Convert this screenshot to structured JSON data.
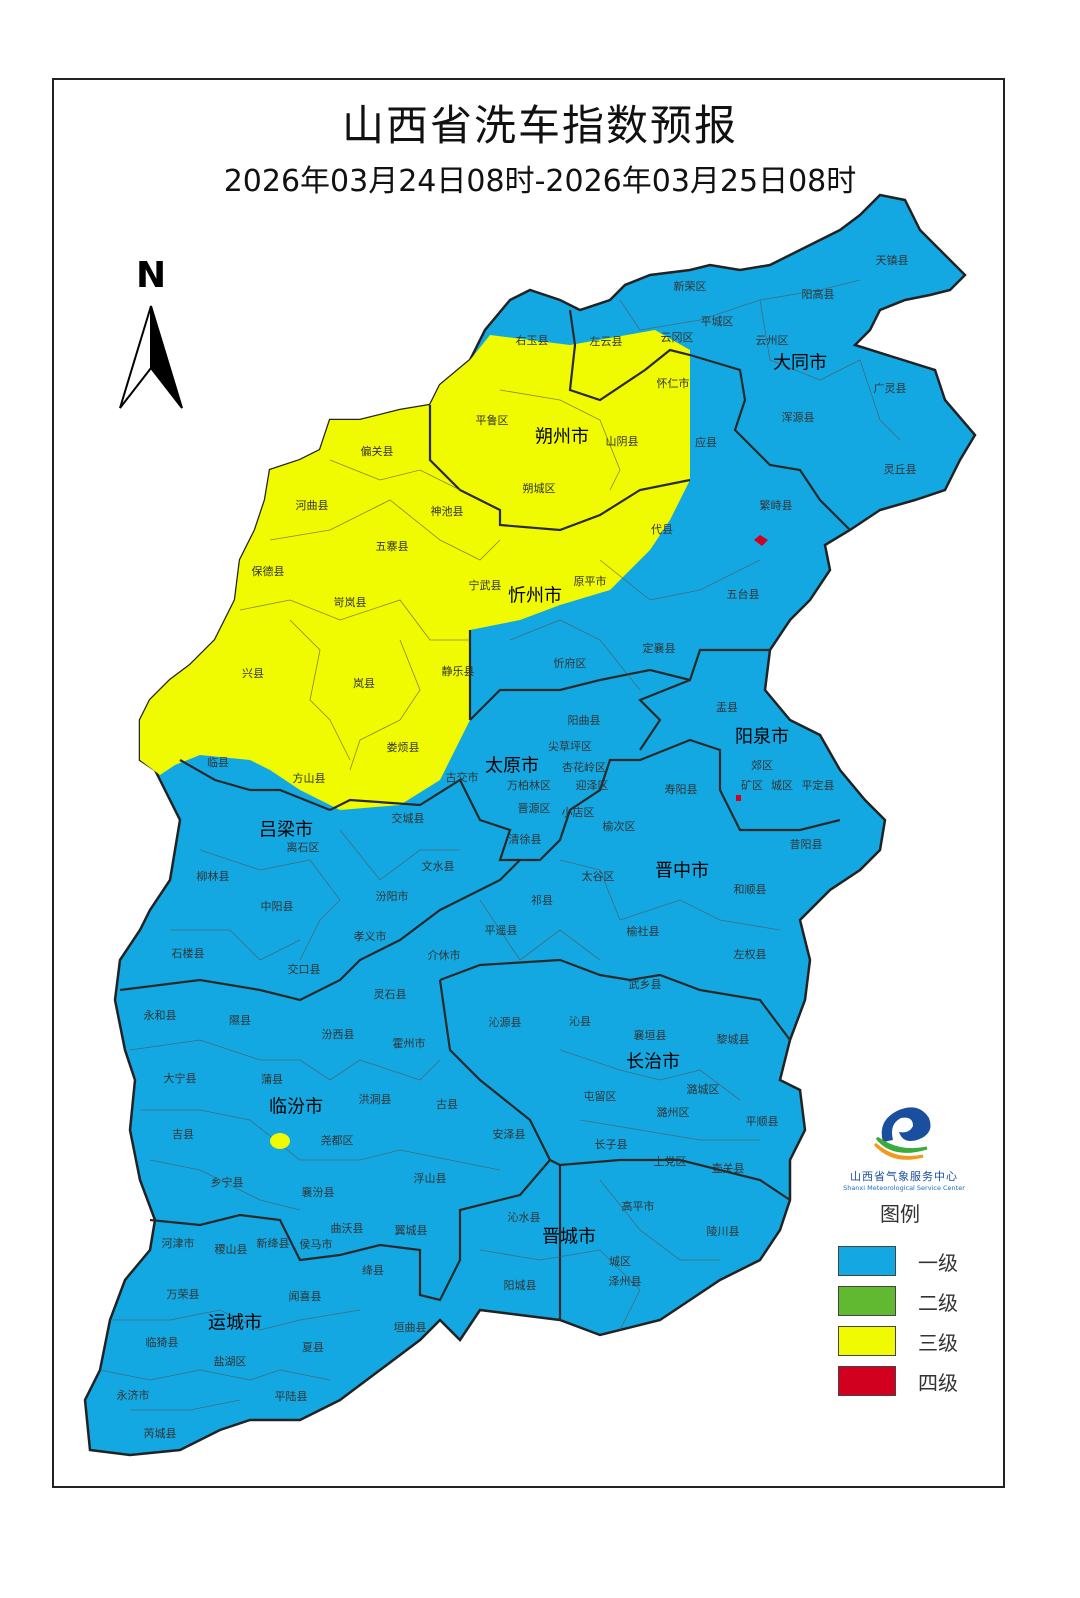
{
  "title": "山西省洗车指数预报",
  "subtitle": "2026年03月24日08时-2026年03月25日08时",
  "north_label": "N",
  "logo": {
    "name_cn": "山西省气象服务中心",
    "name_en": "Shanxi Meteorological Service Center"
  },
  "legend": {
    "title": "图例",
    "items": [
      {
        "label": "一级",
        "color": "#13a8e2"
      },
      {
        "label": "二级",
        "color": "#61b931"
      },
      {
        "label": "三级",
        "color": "#f0fa00"
      },
      {
        "label": "四级",
        "color": "#d2001e"
      }
    ]
  },
  "cities": [
    "大同市",
    "朔州市",
    "忻州市",
    "阳泉市",
    "太原市",
    "吕梁市",
    "晋中市",
    "长治市",
    "临汾市",
    "晋城市",
    "运城市"
  ],
  "counties": [
    "天镇县",
    "新荣区",
    "阳高县",
    "平城区",
    "云冈区",
    "云州区",
    "右玉县",
    "左云县",
    "怀仁市",
    "广灵县",
    "平鲁区",
    "山阴县",
    "浑源县",
    "应县",
    "灵丘县",
    "偏关县",
    "朔城区",
    "繁峙县",
    "河曲县",
    "神池县",
    "代县",
    "五寨县",
    "保德县",
    "宁武县",
    "原平市",
    "岢岚县",
    "五台县",
    "定襄县",
    "忻府区",
    "兴县",
    "静乐县",
    "岚县",
    "盂县",
    "阳曲县",
    "娄烦县",
    "临县",
    "尖草坪区",
    "古交市",
    "杏花岭区",
    "郊区",
    "矿区",
    "万柏林区",
    "迎泽区",
    "城区",
    "平定县",
    "寿阳县",
    "方山县",
    "离石区",
    "交城县",
    "晋源区",
    "小店区",
    "榆次区",
    "清徐县",
    "昔阳县",
    "文水县",
    "柳林县",
    "太谷区",
    "和顺县",
    "汾阳市",
    "祁县",
    "中阳县",
    "平遥县",
    "孝义市",
    "榆社县",
    "介休市",
    "石楼县",
    "左权县",
    "交口县",
    "武乡县",
    "灵石县",
    "永和县",
    "隰县",
    "沁源县",
    "沁县",
    "汾西县",
    "霍州市",
    "黎城县",
    "襄垣县",
    "大宁县",
    "蒲县",
    "洪洞县",
    "潞城区",
    "屯留区",
    "古县",
    "潞州区",
    "平顺县",
    "吉县",
    "安泽县",
    "尧都区",
    "长子县",
    "上党区",
    "壶关县",
    "乡宁县",
    "浮山县",
    "襄汾县",
    "高平市",
    "沁水县",
    "曲沃县",
    "翼城县",
    "陵川县",
    "河津市",
    "稷山县",
    "新绛县",
    "侯马市",
    "绛县",
    "城区",
    "泽州县",
    "阳城县",
    "万荣县",
    "闻喜县",
    "垣曲县",
    "临猗县",
    "夏县",
    "盐湖区",
    "永济市",
    "平陆县",
    "芮城县"
  ],
  "level_colors": {
    "level1": "#13a8e2",
    "level3": "#f0fa00",
    "level4": "#d2001e"
  }
}
